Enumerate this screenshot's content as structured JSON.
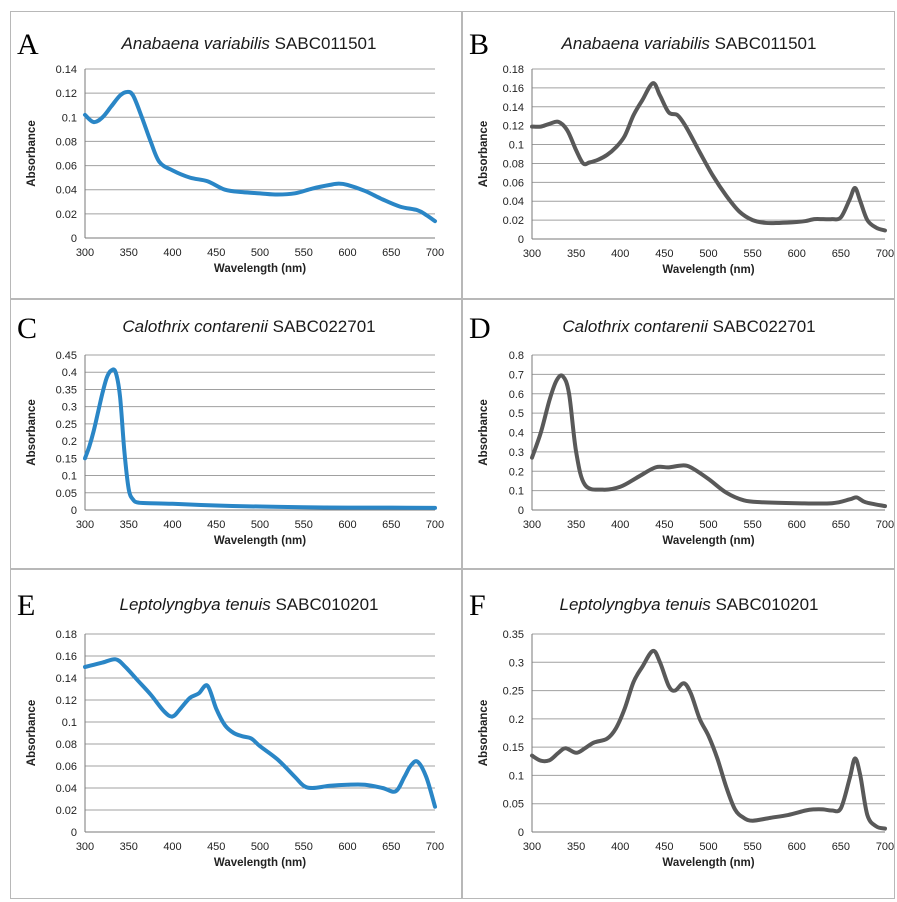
{
  "chart_data": [
    {
      "panel": "A",
      "type": "line",
      "title_species": "Anabaena variabilis",
      "title_strain": "SABC011501",
      "xlabel": "Wavelength (nm)",
      "ylabel": "Absorbance",
      "xlim": [
        300,
        700
      ],
      "ylim": [
        0,
        0.14
      ],
      "xticks": [
        "300",
        "350",
        "400",
        "450",
        "500",
        "550",
        "600",
        "650",
        "700"
      ],
      "yticks": [
        "0",
        "0.02",
        "0.04",
        "0.06",
        "0.08",
        "0.1",
        "0.12",
        "0.14"
      ],
      "grid": true,
      "color": "#2a86c6",
      "series": [
        {
          "x": [
            300,
            310,
            320,
            330,
            340,
            348,
            355,
            365,
            375,
            385,
            400,
            420,
            440,
            460,
            480,
            500,
            520,
            540,
            560,
            580,
            590,
            600,
            620,
            640,
            660,
            680,
            690,
            700
          ],
          "y": [
            0.102,
            0.096,
            0.1,
            0.109,
            0.118,
            0.121,
            0.118,
            0.1,
            0.08,
            0.063,
            0.056,
            0.05,
            0.047,
            0.04,
            0.038,
            0.037,
            0.036,
            0.037,
            0.041,
            0.044,
            0.045,
            0.044,
            0.039,
            0.032,
            0.026,
            0.023,
            0.019,
            0.014
          ]
        }
      ]
    },
    {
      "panel": "B",
      "type": "line",
      "title_species": "Anabaena variabilis",
      "title_strain": "SABC011501",
      "xlabel": "Wavelength (nm)",
      "ylabel": "Absorbance",
      "xlim": [
        300,
        700
      ],
      "ylim": [
        0,
        0.18
      ],
      "xticks": [
        "300",
        "350",
        "400",
        "450",
        "500",
        "550",
        "600",
        "650",
        "700"
      ],
      "yticks": [
        "0",
        "0.02",
        "0.04",
        "0.06",
        "0.08",
        "0.1",
        "0.12",
        "0.14",
        "0.16",
        "0.18"
      ],
      "grid": true,
      "color": "#595959",
      "series": [
        {
          "x": [
            300,
            310,
            320,
            330,
            340,
            350,
            358,
            365,
            375,
            385,
            395,
            405,
            415,
            425,
            437,
            445,
            455,
            465,
            475,
            490,
            505,
            520,
            535,
            550,
            565,
            580,
            600,
            610,
            620,
            630,
            640,
            650,
            660,
            666,
            672,
            680,
            690,
            700
          ],
          "y": [
            0.119,
            0.119,
            0.122,
            0.124,
            0.115,
            0.094,
            0.08,
            0.081,
            0.084,
            0.089,
            0.097,
            0.109,
            0.131,
            0.147,
            0.165,
            0.152,
            0.134,
            0.131,
            0.118,
            0.092,
            0.067,
            0.046,
            0.029,
            0.02,
            0.017,
            0.017,
            0.018,
            0.019,
            0.021,
            0.021,
            0.021,
            0.023,
            0.042,
            0.054,
            0.04,
            0.02,
            0.012,
            0.009
          ]
        }
      ]
    },
    {
      "panel": "C",
      "type": "line",
      "title_species": "Calothrix contarenii",
      "title_strain": "SABC022701",
      "xlabel": "Wavelength (nm)",
      "ylabel": "Absorbance",
      "xlim": [
        300,
        700
      ],
      "ylim": [
        0,
        0.45
      ],
      "xticks": [
        "300",
        "350",
        "400",
        "450",
        "500",
        "550",
        "600",
        "650",
        "700"
      ],
      "yticks": [
        "0",
        "0.05",
        "0.1",
        "0.15",
        "0.2",
        "0.25",
        "0.3",
        "0.35",
        "0.4",
        "0.45"
      ],
      "grid": true,
      "color": "#2a86c6",
      "series": [
        {
          "x": [
            300,
            305,
            310,
            315,
            320,
            325,
            330,
            335,
            340,
            345,
            350,
            355,
            360,
            370,
            400,
            450,
            500,
            550,
            600,
            650,
            700
          ],
          "y": [
            0.15,
            0.185,
            0.23,
            0.285,
            0.34,
            0.385,
            0.405,
            0.4,
            0.33,
            0.17,
            0.06,
            0.03,
            0.022,
            0.02,
            0.018,
            0.013,
            0.01,
            0.008,
            0.007,
            0.007,
            0.006
          ]
        }
      ]
    },
    {
      "panel": "D",
      "type": "line",
      "title_species": "Calothrix contarenii",
      "title_strain": "SABC022701",
      "xlabel": "Wavelength (nm)",
      "ylabel": "Absorbance",
      "xlim": [
        300,
        700
      ],
      "ylim": [
        0,
        0.8
      ],
      "xticks": [
        "300",
        "350",
        "400",
        "450",
        "500",
        "550",
        "600",
        "650",
        "700"
      ],
      "yticks": [
        "0",
        "0.1",
        "0.2",
        "0.3",
        "0.4",
        "0.5",
        "0.6",
        "0.7",
        "0.8"
      ],
      "grid": true,
      "color": "#595959",
      "series": [
        {
          "x": [
            300,
            310,
            320,
            328,
            335,
            342,
            350,
            360,
            380,
            400,
            420,
            440,
            455,
            470,
            480,
            500,
            520,
            540,
            560,
            600,
            640,
            660,
            668,
            678,
            700
          ],
          "y": [
            0.27,
            0.4,
            0.57,
            0.67,
            0.69,
            0.6,
            0.3,
            0.13,
            0.105,
            0.12,
            0.17,
            0.22,
            0.22,
            0.23,
            0.22,
            0.16,
            0.09,
            0.05,
            0.04,
            0.035,
            0.035,
            0.055,
            0.065,
            0.04,
            0.02
          ]
        }
      ]
    },
    {
      "panel": "E",
      "type": "line",
      "title_species": "Leptolyngbya tenuis",
      "title_strain": "SABC010201",
      "xlabel": "Wavelength (nm)",
      "ylabel": "Absorbance",
      "xlim": [
        300,
        700
      ],
      "ylim": [
        0,
        0.18
      ],
      "xticks": [
        "300",
        "350",
        "400",
        "450",
        "500",
        "550",
        "600",
        "650",
        "700"
      ],
      "yticks": [
        "0",
        "0.02",
        "0.04",
        "0.06",
        "0.08",
        "0.1",
        "0.12",
        "0.14",
        "0.16",
        "0.18"
      ],
      "grid": true,
      "color": "#2a86c6",
      "series": [
        {
          "x": [
            300,
            310,
            320,
            335,
            345,
            360,
            375,
            390,
            400,
            410,
            420,
            430,
            440,
            450,
            460,
            470,
            480,
            490,
            500,
            520,
            540,
            550,
            560,
            580,
            600,
            620,
            640,
            655,
            665,
            672,
            680,
            690,
            700
          ],
          "y": [
            0.15,
            0.152,
            0.154,
            0.157,
            0.151,
            0.138,
            0.125,
            0.11,
            0.105,
            0.113,
            0.122,
            0.126,
            0.133,
            0.112,
            0.097,
            0.09,
            0.087,
            0.085,
            0.078,
            0.066,
            0.05,
            0.042,
            0.04,
            0.042,
            0.043,
            0.043,
            0.04,
            0.037,
            0.05,
            0.06,
            0.064,
            0.05,
            0.023
          ]
        }
      ]
    },
    {
      "panel": "F",
      "type": "line",
      "title_species": "Leptolyngbya tenuis",
      "title_strain": "SABC010201",
      "xlabel": "Wavelength (nm)",
      "ylabel": "Absorbance",
      "xlim": [
        300,
        700
      ],
      "ylim": [
        0,
        0.35
      ],
      "xticks": [
        "300",
        "350",
        "400",
        "450",
        "500",
        "550",
        "600",
        "650",
        "700"
      ],
      "yticks": [
        "0",
        "0.05",
        "0.1",
        "0.15",
        "0.2",
        "0.25",
        "0.3",
        "0.35"
      ],
      "grid": true,
      "color": "#595959",
      "series": [
        {
          "x": [
            300,
            310,
            320,
            330,
            338,
            350,
            360,
            370,
            385,
            395,
            405,
            415,
            425,
            437,
            445,
            455,
            462,
            472,
            480,
            490,
            500,
            510,
            520,
            530,
            540,
            550,
            570,
            590,
            610,
            620,
            630,
            640,
            650,
            660,
            666,
            672,
            680,
            690,
            700
          ],
          "y": [
            0.135,
            0.126,
            0.127,
            0.14,
            0.148,
            0.14,
            0.148,
            0.158,
            0.165,
            0.183,
            0.218,
            0.265,
            0.292,
            0.32,
            0.3,
            0.258,
            0.25,
            0.263,
            0.245,
            0.2,
            0.17,
            0.13,
            0.08,
            0.04,
            0.025,
            0.02,
            0.025,
            0.03,
            0.038,
            0.04,
            0.04,
            0.038,
            0.042,
            0.095,
            0.13,
            0.1,
            0.03,
            0.01,
            0.006
          ]
        }
      ]
    }
  ]
}
